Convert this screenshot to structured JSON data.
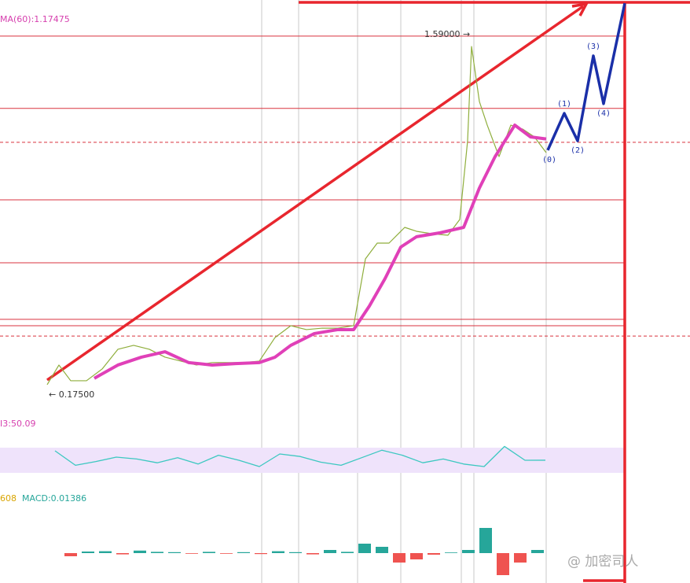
{
  "chart_data": [
    {
      "type": "line",
      "label": "MA(60):1.17475",
      "high_label": "1.59000 →",
      "low_label": "← 0.17500",
      "xlim": [
        -60,
        818
      ],
      "ylim": [
        0.05,
        1.74
      ],
      "levels": [
        1.593,
        1.299,
        0.927,
        0.671,
        0.441,
        0.415
      ],
      "dashed_levels": [
        1.161,
        0.373
      ],
      "series": [
        {
          "color": "#8fae3c",
          "x": [
            0,
            15,
            30,
            50,
            70,
            90,
            110,
            130,
            150,
            170,
            190,
            210,
            230,
            250,
            270,
            290,
            310,
            330,
            350,
            370,
            390,
            405,
            420,
            435,
            455,
            470,
            490,
            510,
            525,
            535,
            540,
            550,
            560,
            575,
            590,
            605,
            620,
            635
          ],
          "values": [
            0.175,
            0.255,
            0.191,
            0.191,
            0.239,
            0.319,
            0.335,
            0.319,
            0.287,
            0.271,
            0.255,
            0.265,
            0.265,
            0.265,
            0.271,
            0.367,
            0.415,
            0.399,
            0.405,
            0.405,
            0.415,
            0.687,
            0.751,
            0.751,
            0.815,
            0.799,
            0.789,
            0.783,
            0.847,
            1.167,
            1.551,
            1.327,
            1.231,
            1.103,
            1.231,
            1.215,
            1.183,
            1.119
          ]
        },
        {
          "color": "#e040b8",
          "x": [
            60,
            90,
            120,
            150,
            180,
            210,
            240,
            270,
            290,
            310,
            340,
            370,
            390,
            410,
            430,
            450,
            470,
            500,
            530,
            550,
            570,
            595,
            615,
            635
          ],
          "values": [
            0.201,
            0.255,
            0.287,
            0.309,
            0.265,
            0.255,
            0.261,
            0.265,
            0.287,
            0.335,
            0.383,
            0.399,
            0.399,
            0.495,
            0.607,
            0.735,
            0.777,
            0.793,
            0.815,
            0.975,
            1.103,
            1.231,
            1.183,
            1.17475
          ]
        },
        {
          "color": "#1a2fa8",
          "x": [
            637,
            658,
            675,
            695,
            708,
            735
          ],
          "values": [
            1.129,
            1.279,
            1.167,
            1.513,
            1.318,
            1.727
          ]
        }
      ],
      "wave_labels": [
        "(0)",
        "(1)",
        "(2)",
        "(3)",
        "(4)"
      ]
    },
    {
      "type": "line",
      "label": "I3:50.09",
      "xlim": [
        -60,
        818
      ],
      "ylim": [
        0,
        100
      ],
      "band": [
        30,
        70
      ],
      "color": "#3cc8c0",
      "x": [
        10,
        36,
        62,
        88,
        114,
        140,
        166,
        192,
        218,
        244,
        270,
        296,
        322,
        348,
        374,
        400,
        426,
        452,
        478,
        504,
        530,
        556,
        582,
        608,
        634
      ],
      "values": [
        65,
        42,
        48,
        55,
        52,
        46,
        54,
        44,
        58,
        50,
        40,
        60,
        56,
        47,
        42,
        54,
        66,
        58,
        46,
        52,
        44,
        40,
        72,
        50,
        50.09
      ]
    },
    {
      "type": "bar",
      "label_a": "608",
      "label_b": "MACD:0.01386",
      "xlim": [
        -60,
        818
      ],
      "ylim": [
        -0.15,
        0.15
      ],
      "x": [
        30,
        52,
        74,
        96,
        118,
        140,
        162,
        184,
        206,
        228,
        250,
        272,
        294,
        316,
        338,
        360,
        382,
        404,
        426,
        448,
        470,
        492,
        514,
        536,
        558,
        580,
        602,
        624
      ],
      "values": [
        -0.01,
        0.005,
        0.006,
        -0.004,
        0.008,
        0.004,
        0.003,
        -0.002,
        0.004,
        -0.002,
        0.003,
        -0.003,
        0.006,
        0.003,
        -0.004,
        0.01,
        0.004,
        0.03,
        0.02,
        -0.03,
        -0.02,
        -0.005,
        0.002,
        0.01,
        0.08,
        -0.07,
        -0.03,
        0.01
      ]
    }
  ],
  "watermark": "@ 加密司人"
}
